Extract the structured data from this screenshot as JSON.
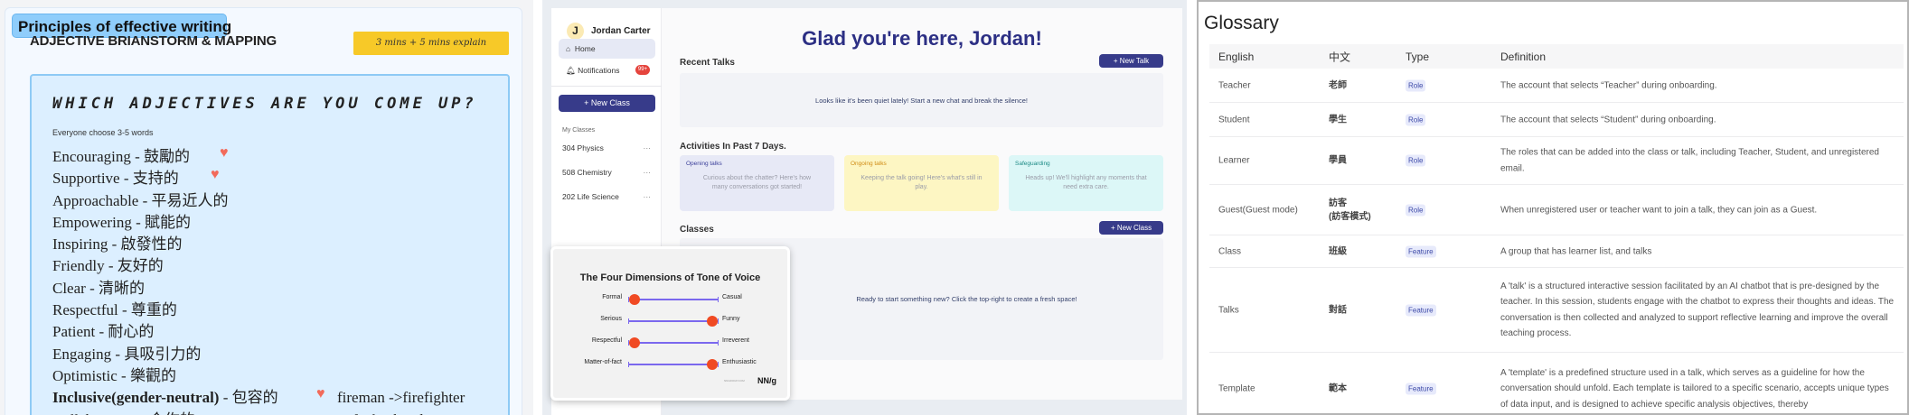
{
  "left": {
    "badge": "Principles of effective writing",
    "subtitle": "ADJECTIVE BRIANSTORM & MAPPING",
    "time_tag": "3 mins + 5 mins explain",
    "question": "WHICH ADJECTIVES ARE YOU COME UP?",
    "hint": "Everyone choose 3-5 words",
    "items": [
      {
        "text": "Encouraging - 鼓勵的",
        "heart": true
      },
      {
        "text": "Supportive - 支持的",
        "heart": true
      },
      {
        "text": "Approachable - 平易近人的",
        "heart": false
      },
      {
        "text": "Empowering - 賦能的",
        "heart": false
      },
      {
        "text": "Inspiring - 啟發性的",
        "heart": false
      },
      {
        "text": "Friendly - 友好的",
        "heart": false
      },
      {
        "text": "Clear - 清晰的",
        "heart": false
      },
      {
        "text": "Respectful - 尊重的",
        "heart": false
      },
      {
        "text": "Patient - 耐心的",
        "heart": false
      },
      {
        "text": "Engaging - 具吸引力的",
        "heart": false
      },
      {
        "text": "Optimistic - 樂觀的",
        "heart": false
      },
      {
        "text": "Inclusive(gender-neutral)",
        "suffix": " - 包容的",
        "heart": true,
        "note": "fireman ->firefighter"
      },
      {
        "text": "Collaborative - 合作的",
        "heart": false,
        "note": "wife, husband -> Partner"
      }
    ],
    "heart_color": "#f26a5a"
  },
  "middle": {
    "user": {
      "initial": "J",
      "name": "Jordan Carter"
    },
    "nav": [
      {
        "label": "Home",
        "icon": "home-icon",
        "active": true
      },
      {
        "label": "Notifications",
        "icon": "bell-icon",
        "badge": "99+"
      }
    ],
    "new_class": "+ New Class",
    "my_classes_label": "My Classes",
    "classes": [
      "304 Physics",
      "508 Chemistry",
      "202 Life Science"
    ],
    "more": "···",
    "greeting": "Glad you're here, Jordan!",
    "recent_talks": "Recent Talks",
    "new_talk": "+ New Talk",
    "recent_empty": "Looks like it's been quiet lately! Start a new chat and break the silence!",
    "activities": "Activities In Past 7 Days.",
    "cards": [
      {
        "title": "Opening talks",
        "desc": "Curious about the chatter? Here's how many conversations got started!",
        "bg": "#e7e9f6",
        "color": "#3b3f9a"
      },
      {
        "title": "Ongoing talks",
        "desc": "Keeping the talk going! Here's what's still in play.",
        "bg": "#fdf6c3",
        "color": "#d08b14"
      },
      {
        "title": "Safeguarding",
        "desc": "Heads up! We'll highlight any moments that need extra care.",
        "bg": "#dcf7f7",
        "color": "#1c8a85"
      }
    ],
    "classes_title": "Classes",
    "classes_new": "+ New Class",
    "classes_empty": "Ready to start something new? Click the top-right to create a fresh space!",
    "accent": "#373b8a",
    "tone": {
      "title": "The Four Dimensions of Tone of Voice",
      "dimensions": [
        {
          "left": "Formal",
          "right": "Casual",
          "value": 0
        },
        {
          "left": "Serious",
          "right": "Funny",
          "value": 1
        },
        {
          "left": "Respectful",
          "right": "Irreverent",
          "value": 0
        },
        {
          "left": "Matter-of-fact",
          "right": "Enthusiastic",
          "value": 1
        }
      ],
      "source": "NNGROUP.COM",
      "logo": "NN/g"
    }
  },
  "glossary": {
    "title": "Glossary",
    "columns": [
      "English",
      "中文",
      "Type",
      "Definition"
    ],
    "rows": [
      {
        "en": "Teacher",
        "zh": "老師",
        "type": "Role",
        "def": "The account that selects “Teacher” during onboarding."
      },
      {
        "en": "Student",
        "zh": "學生",
        "type": "Role",
        "def": "The account that selects “Student” during onboarding."
      },
      {
        "en": "Learner",
        "zh": "學員",
        "type": "Role",
        "def": "The roles that can be added into the class or talk, including Teacher, Student, and unregistered email."
      },
      {
        "en": "Guest(Guest mode)",
        "zh": "訪客\n(訪客模式)",
        "type": "Role",
        "def": "When unregistered user or teacher want to join a talk, they can join as a Guest."
      },
      {
        "en": "Class",
        "zh": "班級",
        "type": "Feature",
        "def": "A group that has learner list, and talks"
      },
      {
        "en": "Talks",
        "zh": "對話",
        "type": "Feature",
        "def": "A 'talk' is a structured interactive session facilitated by an AI chatbot that is pre-designed by the teacher. In this session, students engage with the chatbot to express their thoughts and ideas. The conversation is then collected and analyzed to support reflective learning and improve the overall teaching process."
      },
      {
        "en": "Template",
        "zh": "範本",
        "type": "Feature",
        "def": "A 'template' is a predefined structure used in a talk, which serves as a guideline for how the conversation should unfold. Each template is tailored to a specific scenario, accepts unique types of data input, and is designed to achieve specific analysis objectives, thereby"
      }
    ]
  }
}
